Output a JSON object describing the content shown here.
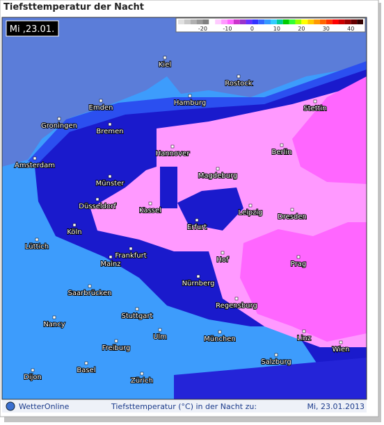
{
  "header": {
    "title": "Tiefsttemperatur der Nacht"
  },
  "map": {
    "date_box": "Mi ,23.01.",
    "legend": {
      "ticks": [
        -20,
        -10,
        0,
        10,
        20,
        30,
        40
      ]
    },
    "cities": [
      "Kiel",
      "Rostock",
      "Emden",
      "Hamburg",
      "Stettin",
      "Groningen",
      "Bremen",
      "Amsterdam",
      "Hannover",
      "Berlin",
      "Magdeburg",
      "Münster",
      "Düsseldorf",
      "Kassel",
      "Leipzig",
      "Dresden",
      "Köln",
      "Erfurt",
      "Lüttich",
      "Frankfurt",
      "Hof",
      "Prag",
      "Mainz",
      "Saarbrücken",
      "Nürnberg",
      "Regensburg",
      "Stuttgart",
      "Nancy",
      "Ulm",
      "München",
      "Linz",
      "Wien",
      "Freiburg",
      "Salzburg",
      "Basel",
      "Dijon",
      "Zürich"
    ]
  },
  "footer": {
    "brand": "WetterOnline",
    "caption": "Tiefsttemperatur (°C) in der Nacht zu:",
    "date": "Mi, 23.01.2013"
  }
}
